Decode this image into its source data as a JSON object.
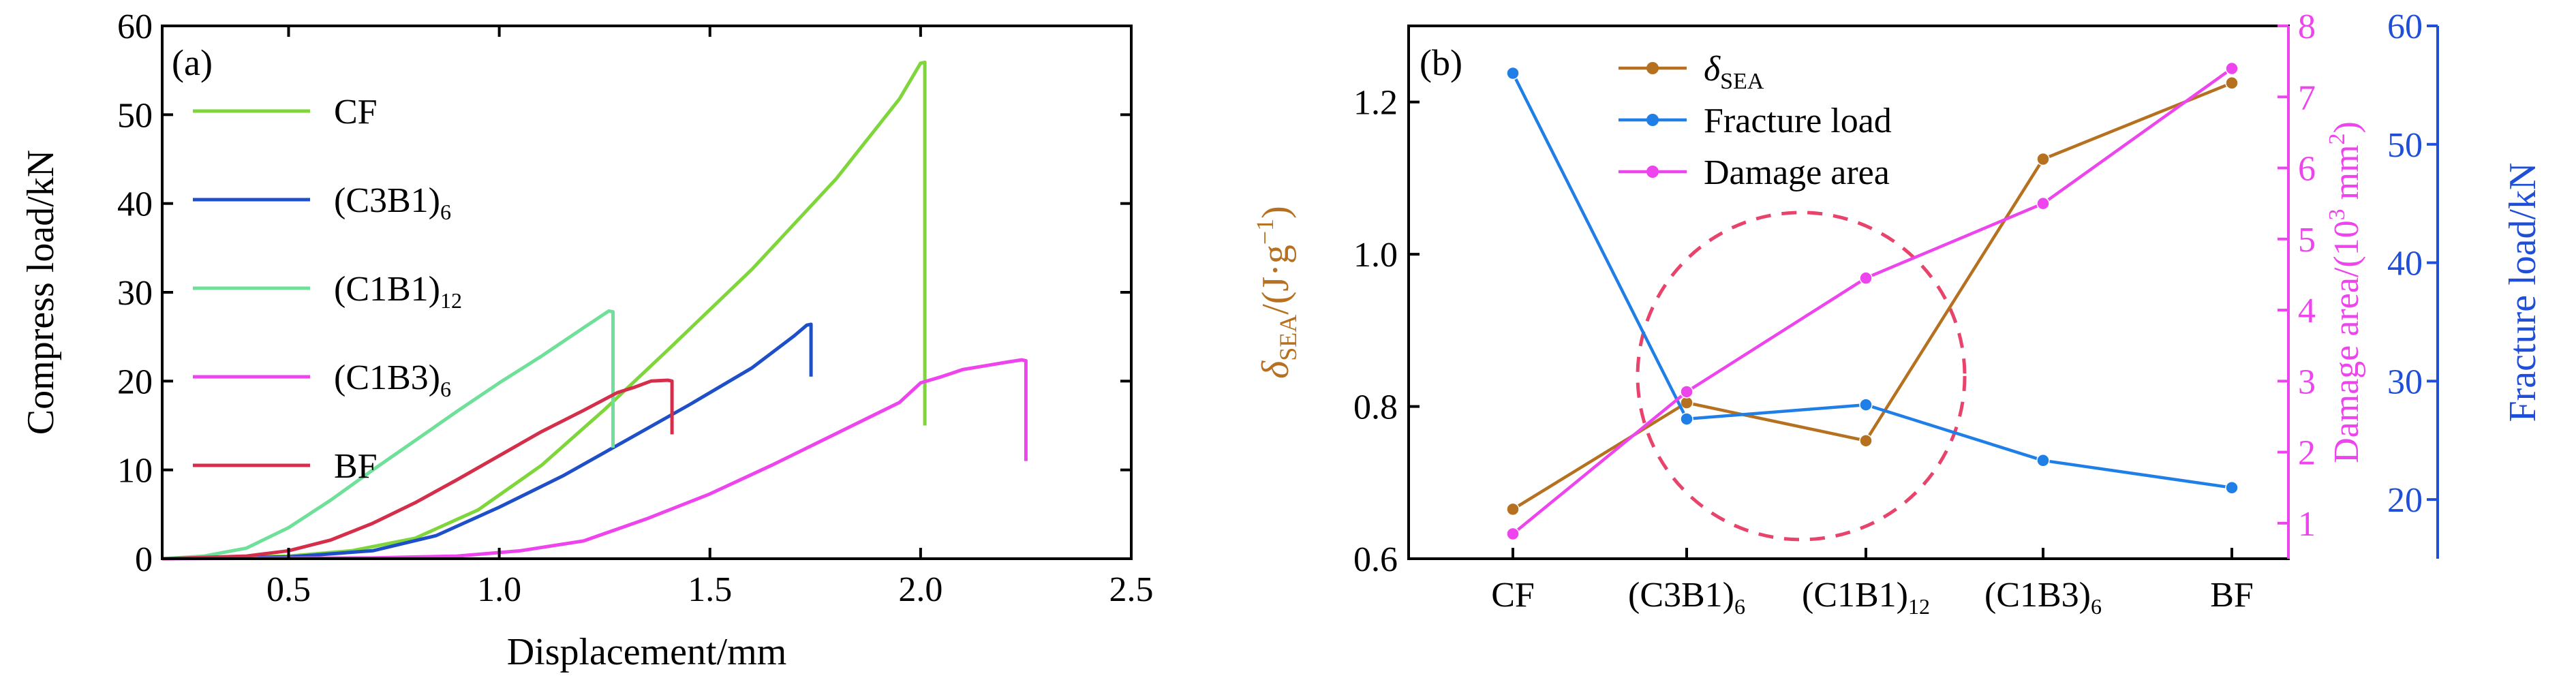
{
  "chart_data": [
    {
      "panel_label": "(a)",
      "type": "line",
      "xlabel": "Displacement/mm",
      "ylabel": "Compress load/kN",
      "xlim": [
        0.2,
        2.5
      ],
      "ylim": [
        0,
        60
      ],
      "xticks": [
        0.5,
        1.0,
        1.5,
        2.0,
        2.5
      ],
      "xtick_labels": [
        "0.5",
        "1.0",
        "1.5",
        "2.0",
        "2.5"
      ],
      "yticks": [
        0,
        10,
        20,
        30,
        40,
        50,
        60
      ],
      "ytick_labels": [
        "0",
        "10",
        "20",
        "30",
        "40",
        "50",
        "60"
      ],
      "legend": "top-left",
      "series": [
        {
          "name": "CF",
          "name_main": "CF",
          "name_sub": "",
          "color": "#7ed63a",
          "points": [
            [
              0.2,
              0
            ],
            [
              0.5,
              0.3
            ],
            [
              0.65,
              0.9
            ],
            [
              0.8,
              2.3
            ],
            [
              0.95,
              5.5
            ],
            [
              1.1,
              10.5
            ],
            [
              1.25,
              16.8
            ],
            [
              1.4,
              23.5
            ],
            [
              1.6,
              32.6
            ],
            [
              1.8,
              42.8
            ],
            [
              1.95,
              51.8
            ],
            [
              2.0,
              55.8
            ],
            [
              2.01,
              55.9
            ],
            [
              2.01,
              15
            ]
          ]
        },
        {
          "name": "(C3B1)6",
          "name_main": "(C3B1)",
          "name_sub": "6",
          "color": "#1f4fc8",
          "points": [
            [
              0.2,
              0
            ],
            [
              0.5,
              0.2
            ],
            [
              0.7,
              0.9
            ],
            [
              0.85,
              2.6
            ],
            [
              1.0,
              5.8
            ],
            [
              1.15,
              9.3
            ],
            [
              1.3,
              13.3
            ],
            [
              1.45,
              17.3
            ],
            [
              1.6,
              21.5
            ],
            [
              1.7,
              25.1
            ],
            [
              1.73,
              26.3
            ],
            [
              1.74,
              26.4
            ],
            [
              1.74,
              20.5
            ]
          ]
        },
        {
          "name": "(C1B1)12",
          "name_main": "(C1B1)",
          "name_sub": "12",
          "color": "#6fe09a",
          "points": [
            [
              0.2,
              0
            ],
            [
              0.3,
              0.3
            ],
            [
              0.4,
              1.2
            ],
            [
              0.5,
              3.5
            ],
            [
              0.6,
              6.6
            ],
            [
              0.7,
              10.0
            ],
            [
              0.8,
              13.3
            ],
            [
              0.9,
              16.6
            ],
            [
              1.0,
              19.8
            ],
            [
              1.1,
              22.8
            ],
            [
              1.2,
              26.0
            ],
            [
              1.26,
              27.9
            ],
            [
              1.27,
              27.8
            ],
            [
              1.27,
              12.5
            ]
          ]
        },
        {
          "name": "(C1B3)6",
          "name_main": "(C1B3)",
          "name_sub": "6",
          "color": "#ee44ee",
          "points": [
            [
              0.2,
              0
            ],
            [
              0.7,
              0.1
            ],
            [
              0.9,
              0.3
            ],
            [
              1.05,
              0.9
            ],
            [
              1.2,
              2.0
            ],
            [
              1.35,
              4.5
            ],
            [
              1.5,
              7.3
            ],
            [
              1.65,
              10.6
            ],
            [
              1.8,
              14.1
            ],
            [
              1.95,
              17.6
            ],
            [
              2.0,
              19.8
            ],
            [
              2.05,
              20.5
            ],
            [
              2.1,
              21.3
            ],
            [
              2.15,
              21.7
            ],
            [
              2.2,
              22.1
            ],
            [
              2.24,
              22.4
            ],
            [
              2.25,
              22.3
            ],
            [
              2.25,
              11
            ]
          ]
        },
        {
          "name": "BF",
          "name_main": "BF",
          "name_sub": "",
          "color": "#d42e4a",
          "points": [
            [
              0.2,
              0
            ],
            [
              0.4,
              0.3
            ],
            [
              0.5,
              0.9
            ],
            [
              0.6,
              2.1
            ],
            [
              0.7,
              4.0
            ],
            [
              0.8,
              6.3
            ],
            [
              0.9,
              8.9
            ],
            [
              1.0,
              11.6
            ],
            [
              1.1,
              14.3
            ],
            [
              1.2,
              16.7
            ],
            [
              1.28,
              18.7
            ],
            [
              1.32,
              19.3
            ],
            [
              1.36,
              20.0
            ],
            [
              1.4,
              20.1
            ],
            [
              1.41,
              20.0
            ],
            [
              1.41,
              14
            ]
          ]
        }
      ]
    },
    {
      "panel_label": "(b)",
      "type": "line",
      "categories": [
        {
          "main": "CF",
          "sub": ""
        },
        {
          "main": "(C3B1)",
          "sub": "6"
        },
        {
          "main": "(C1B1)",
          "sub": "12"
        },
        {
          "main": "(C1B3)",
          "sub": "6"
        },
        {
          "main": "BF",
          "sub": ""
        }
      ],
      "ylabel_left": {
        "symbol": "δ",
        "sub": "SEA",
        "unit": "/(J·g",
        "sup": "−1",
        "close": ")"
      },
      "ylabel_right1": {
        "text": "Damage area/(10",
        "sup": "3",
        "unit": " mm",
        "sup2": "2",
        "close": ")"
      },
      "ylabel_right2": "Fracture load/kN",
      "ylim_left": [
        0.6,
        1.3
      ],
      "yticks_left": [
        0.6,
        0.8,
        1.0,
        1.2
      ],
      "ytick_labels_left": [
        "0.6",
        "0.8",
        "1.0",
        "1.2"
      ],
      "ylim_right1": [
        0.5,
        8
      ],
      "yticks_right1": [
        1,
        2,
        3,
        4,
        5,
        6,
        7,
        8
      ],
      "ytick_labels_right1": [
        "1",
        "2",
        "3",
        "4",
        "5",
        "6",
        "7",
        "8"
      ],
      "ylim_right2": [
        15,
        60
      ],
      "yticks_right2": [
        20,
        30,
        40,
        50,
        60
      ],
      "ytick_labels_right2": [
        "20",
        "30",
        "40",
        "50",
        "60"
      ],
      "legend": "top-left",
      "series": [
        {
          "name": "δSEA",
          "name_main": "δ",
          "name_sub": "SEA",
          "axis": "left",
          "color": "#b5711f",
          "values": [
            0.665,
            0.805,
            0.755,
            1.125,
            1.225
          ]
        },
        {
          "name": "Fracture load",
          "name_main": "Fracture load",
          "name_sub": "",
          "axis": "right2",
          "color": "#1f7fe6",
          "values": [
            56.0,
            26.8,
            28.0,
            23.3,
            21.0
          ]
        },
        {
          "name": "Damage area",
          "name_main": "Damage area",
          "name_sub": "",
          "axis": "right1",
          "color": "#ee44ee",
          "values": [
            0.85,
            2.85,
            4.45,
            5.5,
            7.4
          ]
        }
      ],
      "annotation": {
        "type": "dashed-circle",
        "color": "#e8436a",
        "center_category": 2,
        "center_value_left": 0.84
      }
    }
  ],
  "colors": {
    "axis": "#000000",
    "left_axis_label": "#b5711f",
    "right1_axis": "#ee44ee",
    "right2_axis": "#1f4fd8"
  }
}
